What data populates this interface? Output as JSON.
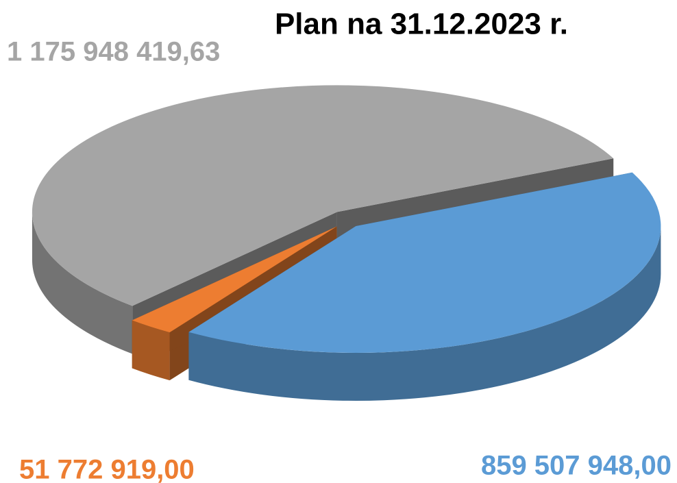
{
  "chart_data": {
    "type": "pie",
    "title": "Plan na 31.12.2023 r.",
    "values": [
      859507948.0,
      51772919.0,
      1175948419.63
    ],
    "value_labels": [
      "859 507 948,00",
      "51 772 919,00",
      "1 175 948 419,63"
    ],
    "colors": [
      "#5b9bd5",
      "#ed7d31",
      "#a5a5a5"
    ]
  }
}
